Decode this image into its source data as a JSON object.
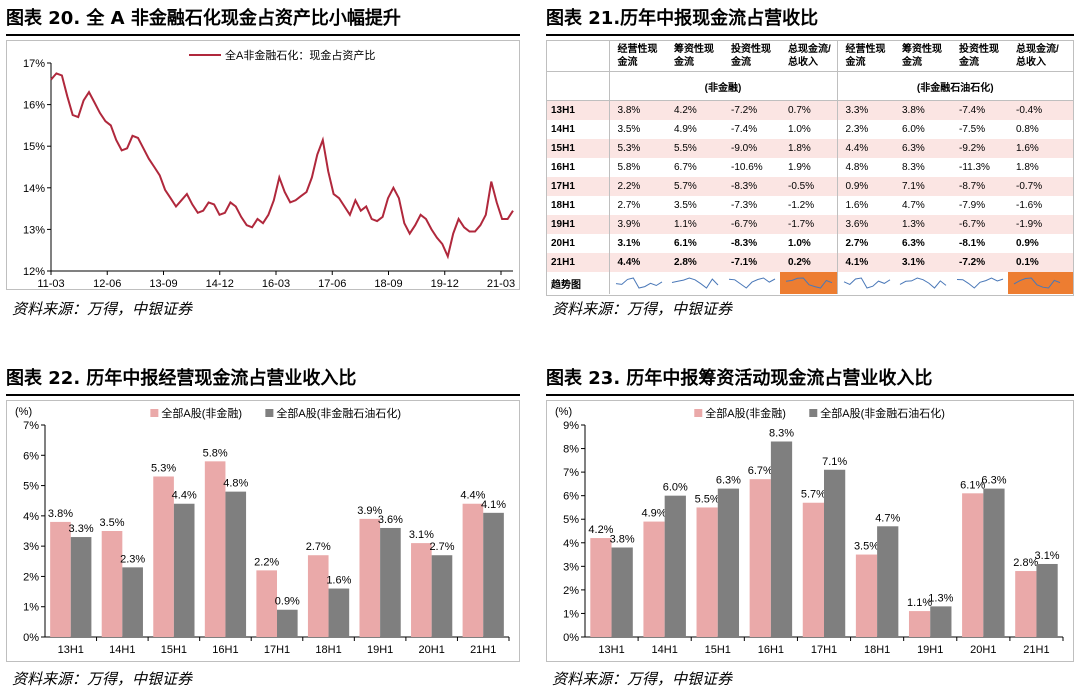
{
  "panels": {
    "p20": {
      "title": "图表 20. 全 A 非金融石化现金占资产比小幅提升",
      "source": "资料来源：万得，中银证券"
    },
    "p21": {
      "title": "图表 21.历年中报现金流占营收比",
      "source": "资料来源：万得，中银证券"
    },
    "p22": {
      "title": "图表 22. 历年中报经营现金流占营业收入比",
      "source": "资料来源：万得，中银证券"
    },
    "p23": {
      "title": "图表 23. 历年中报筹资活动现金流占营业收入比",
      "source": "资料来源：万得，中银证券"
    }
  },
  "table21": {
    "headers": [
      "经营性现\n金流",
      "筹资性现\n金流",
      "投资性现\n金流",
      "总现金流/\n总收入",
      "经营性现\n金流",
      "筹资性现\n金流",
      "投资性现\n金流",
      "总现金流/\n总收入"
    ],
    "group1": "(非金融)",
    "group2": "(非金融石油石化)",
    "rows": [
      {
        "label": "13H1",
        "v": [
          "3.8%",
          "4.2%",
          "-7.2%",
          "0.7%",
          "3.3%",
          "3.8%",
          "-7.4%",
          "-0.4%"
        ]
      },
      {
        "label": "14H1",
        "v": [
          "3.5%",
          "4.9%",
          "-7.4%",
          "1.0%",
          "2.3%",
          "6.0%",
          "-7.5%",
          "0.8%"
        ]
      },
      {
        "label": "15H1",
        "v": [
          "5.3%",
          "5.5%",
          "-9.0%",
          "1.8%",
          "4.4%",
          "6.3%",
          "-9.2%",
          "1.6%"
        ]
      },
      {
        "label": "16H1",
        "v": [
          "5.8%",
          "6.7%",
          "-10.6%",
          "1.9%",
          "4.8%",
          "8.3%",
          "-11.3%",
          "1.8%"
        ]
      },
      {
        "label": "17H1",
        "v": [
          "2.2%",
          "5.7%",
          "-8.3%",
          "-0.5%",
          "0.9%",
          "7.1%",
          "-8.7%",
          "-0.7%"
        ]
      },
      {
        "label": "18H1",
        "v": [
          "2.7%",
          "3.5%",
          "-7.3%",
          "-1.2%",
          "1.6%",
          "4.7%",
          "-7.9%",
          "-1.6%"
        ]
      },
      {
        "label": "19H1",
        "v": [
          "3.9%",
          "1.1%",
          "-6.7%",
          "-1.7%",
          "3.6%",
          "1.3%",
          "-6.7%",
          "-1.9%"
        ]
      },
      {
        "label": "20H1",
        "v": [
          "3.1%",
          "6.1%",
          "-8.3%",
          "1.0%",
          "2.7%",
          "6.3%",
          "-8.1%",
          "0.9%"
        ]
      },
      {
        "label": "21H1",
        "v": [
          "4.4%",
          "2.8%",
          "-7.1%",
          "0.2%",
          "4.1%",
          "3.1%",
          "-7.2%",
          "0.1%"
        ]
      }
    ],
    "trend_label": "趋势图",
    "highlight_color": "#ed7d31",
    "pink_color": "#fbe5e3"
  },
  "chart_data": [
    {
      "id": "p20",
      "type": "line",
      "legend": "全A非金融石化：现金占资产比",
      "color": "#b0283c",
      "ylim": [
        12,
        17
      ],
      "yticks": [
        "12%",
        "13%",
        "14%",
        "15%",
        "16%",
        "17%"
      ],
      "xticks": [
        "11-03",
        "12-06",
        "13-09",
        "14-12",
        "16-03",
        "17-06",
        "18-09",
        "19-12",
        "21-03"
      ],
      "x_start": "2011-03",
      "x_end": "2021-06",
      "values": [
        16.6,
        16.75,
        16.7,
        16.2,
        15.75,
        15.7,
        16.1,
        16.3,
        16.05,
        15.8,
        15.6,
        15.5,
        15.15,
        14.9,
        14.95,
        15.25,
        15.2,
        14.95,
        14.7,
        14.5,
        14.3,
        13.95,
        13.75,
        13.55,
        13.7,
        13.85,
        13.6,
        13.4,
        13.45,
        13.65,
        13.6,
        13.35,
        13.4,
        13.65,
        13.55,
        13.3,
        13.1,
        13.05,
        13.25,
        13.15,
        13.35,
        13.7,
        14.25,
        13.9,
        13.65,
        13.7,
        13.8,
        13.9,
        14.25,
        14.8,
        15.15,
        14.4,
        13.85,
        13.75,
        13.55,
        13.35,
        13.7,
        13.45,
        13.55,
        13.25,
        13.2,
        13.3,
        13.75,
        14.0,
        13.75,
        13.15,
        12.9,
        13.1,
        13.35,
        13.25,
        13.0,
        12.8,
        12.65,
        12.35,
        12.9,
        13.25,
        13.05,
        12.95,
        12.95,
        13.1,
        13.35,
        14.15,
        13.65,
        13.25,
        13.25,
        13.45
      ]
    },
    {
      "id": "p22",
      "type": "bar",
      "ylim": [
        0,
        7
      ],
      "yticks": [
        "0%",
        "1%",
        "2%",
        "3%",
        "4%",
        "5%",
        "6%",
        "7%"
      ],
      "unit": "(%)",
      "categories": [
        "13H1",
        "14H1",
        "15H1",
        "16H1",
        "17H1",
        "18H1",
        "19H1",
        "20H1",
        "21H1"
      ],
      "series": [
        {
          "name": "全部A股(非金融)",
          "color": "#eaa9a9",
          "values": [
            3.8,
            3.5,
            5.3,
            5.8,
            2.2,
            2.7,
            3.9,
            3.1,
            4.4
          ],
          "labels": [
            "3.8%",
            "3.5%",
            "5.3%",
            "5.8%",
            "2.2%",
            "2.7%",
            "3.9%",
            "3.1%",
            "4.4%"
          ]
        },
        {
          "name": "全部A股(非金融石油石化)",
          "color": "#7f7f7f",
          "values": [
            3.3,
            2.3,
            4.4,
            4.8,
            0.9,
            1.6,
            3.6,
            2.7,
            4.1
          ],
          "labels": [
            "3.3%",
            "2.3%",
            "4.4%",
            "4.8%",
            "0.9%",
            "1.6%",
            "3.6%",
            "2.7%",
            "4.1%"
          ]
        }
      ]
    },
    {
      "id": "p23",
      "type": "bar",
      "ylim": [
        0,
        9
      ],
      "yticks": [
        "0%",
        "1%",
        "2%",
        "3%",
        "4%",
        "5%",
        "6%",
        "7%",
        "8%",
        "9%"
      ],
      "unit": "(%)",
      "categories": [
        "13H1",
        "14H1",
        "15H1",
        "16H1",
        "17H1",
        "18H1",
        "19H1",
        "20H1",
        "21H1"
      ],
      "series": [
        {
          "name": "全部A股(非金融)",
          "color": "#eaa9a9",
          "values": [
            4.2,
            4.9,
            5.5,
            6.7,
            5.7,
            3.5,
            1.1,
            6.1,
            2.8
          ],
          "labels": [
            "4.2%",
            "4.9%",
            "5.5%",
            "6.7%",
            "5.7%",
            "3.5%",
            "1.1%",
            "6.1%",
            "2.8%"
          ]
        },
        {
          "name": "全部A股(非金融石油石化)",
          "color": "#7f7f7f",
          "values": [
            3.8,
            6.0,
            6.3,
            8.3,
            7.1,
            4.7,
            1.3,
            6.3,
            3.1
          ],
          "labels": [
            "3.8%",
            "6.0%",
            "6.3%",
            "8.3%",
            "7.1%",
            "4.7%",
            "1.3%",
            "6.3%",
            "3.1%"
          ]
        }
      ]
    }
  ]
}
